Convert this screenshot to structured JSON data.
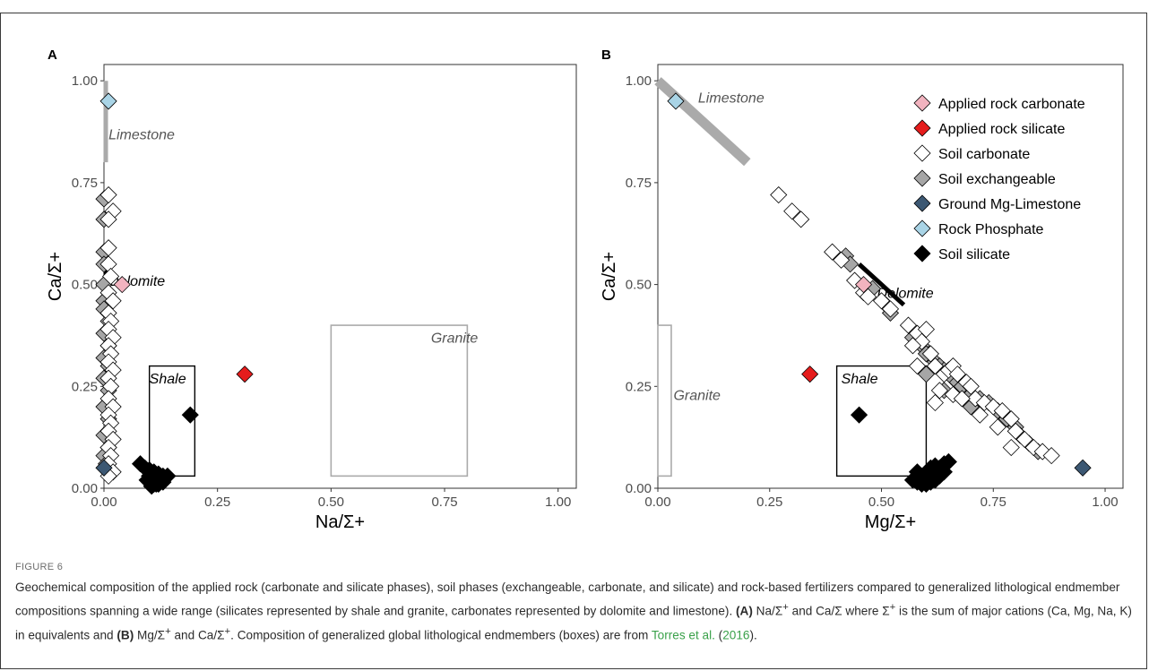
{
  "chart_data": [
    {
      "type": "scatter",
      "panel": "A",
      "xlabel": "Na/Σ+",
      "ylabel": "Ca/Σ+",
      "xlim": [
        0,
        1.04
      ],
      "ylim": [
        0,
        1.04
      ],
      "x_ticks": [
        "0.00",
        "0.25",
        "0.50",
        "0.75",
        "1.00"
      ],
      "y_ticks": [
        "0.00",
        "0.25",
        "0.50",
        "0.75",
        "1.00"
      ],
      "endmembers": [
        {
          "name": "Limestone",
          "kind": "bar",
          "color": "#aaaaaa",
          "x": [
            0,
            0
          ],
          "y": [
            0.8,
            1.0
          ],
          "label_at": [
            0.01,
            0.87
          ]
        },
        {
          "name": "Dolomite",
          "kind": "bar",
          "color": "#000000",
          "x": [
            0,
            0
          ],
          "y": [
            0.45,
            0.55
          ],
          "label_at": [
            0.01,
            0.51
          ]
        },
        {
          "name": "Shale",
          "kind": "box",
          "color": "#000000",
          "x": [
            0.1,
            0.2
          ],
          "y": [
            0.03,
            0.3
          ],
          "label_at": [
            0.1,
            0.27
          ]
        },
        {
          "name": "Granite",
          "kind": "box",
          "color": "#aaaaaa",
          "x": [
            0.5,
            0.8
          ],
          "y": [
            0.03,
            0.4
          ],
          "label_at": [
            0.72,
            0.37
          ]
        }
      ],
      "series": [
        {
          "name": "Soil exchangeable",
          "color": "#a6a6a6",
          "points": [
            [
              0,
              0.71
            ],
            [
              0,
              0.66
            ],
            [
              0,
              0.58
            ],
            [
              0,
              0.55
            ],
            [
              0,
              0.5
            ],
            [
              0,
              0.46
            ],
            [
              0,
              0.44
            ],
            [
              0.01,
              0.41
            ],
            [
              0,
              0.38
            ],
            [
              0.01,
              0.35
            ],
            [
              0,
              0.32
            ],
            [
              0.01,
              0.3
            ],
            [
              0,
              0.27
            ],
            [
              0.01,
              0.24
            ],
            [
              0,
              0.2
            ],
            [
              0.01,
              0.17
            ],
            [
              0,
              0.13
            ],
            [
              0.01,
              0.1
            ],
            [
              0,
              0.08
            ],
            [
              0.005,
              0.06
            ]
          ]
        },
        {
          "name": "Soil carbonate",
          "color": "#ffffff",
          "points": [
            [
              0.01,
              0.72
            ],
            [
              0.02,
              0.68
            ],
            [
              0.01,
              0.66
            ],
            [
              0.01,
              0.59
            ],
            [
              0.01,
              0.55
            ],
            [
              0.015,
              0.52
            ],
            [
              0.01,
              0.48
            ],
            [
              0.02,
              0.46
            ],
            [
              0.01,
              0.43
            ],
            [
              0.015,
              0.41
            ],
            [
              0.01,
              0.39
            ],
            [
              0.02,
              0.37
            ],
            [
              0.01,
              0.35
            ],
            [
              0.015,
              0.33
            ],
            [
              0.01,
              0.31
            ],
            [
              0.02,
              0.29
            ],
            [
              0.01,
              0.27
            ],
            [
              0.015,
              0.25
            ],
            [
              0.01,
              0.22
            ],
            [
              0.02,
              0.2
            ],
            [
              0.01,
              0.18
            ],
            [
              0.015,
              0.16
            ],
            [
              0.01,
              0.14
            ],
            [
              0.02,
              0.12
            ],
            [
              0.01,
              0.1
            ],
            [
              0.015,
              0.08
            ],
            [
              0.01,
              0.06
            ],
            [
              0.02,
              0.04
            ],
            [
              0.01,
              0.03
            ]
          ]
        },
        {
          "name": "Soil silicate",
          "color": "#000000",
          "points": [
            [
              0.19,
              0.18
            ],
            [
              0.08,
              0.06
            ],
            [
              0.09,
              0.05
            ],
            [
              0.1,
              0.045
            ],
            [
              0.11,
              0.04
            ],
            [
              0.12,
              0.035
            ],
            [
              0.13,
              0.03
            ],
            [
              0.14,
              0.03
            ],
            [
              0.1,
              0.03
            ],
            [
              0.11,
              0.025
            ],
            [
              0.12,
              0.02
            ],
            [
              0.13,
              0.02
            ],
            [
              0.1,
              0.015
            ],
            [
              0.11,
              0.01
            ],
            [
              0.12,
              0.01
            ],
            [
              0.13,
              0.015
            ],
            [
              0.095,
              0.02
            ],
            [
              0.105,
              0.005
            ],
            [
              0.115,
              0.01
            ],
            [
              0.125,
              0.03
            ]
          ]
        },
        {
          "name": "Ground Mg-Limestone",
          "color": "#3c5873",
          "points": [
            [
              0.0,
              0.05
            ]
          ]
        },
        {
          "name": "Rock Phosphate",
          "color": "#a9d4e6",
          "points": [
            [
              0.01,
              0.95
            ]
          ]
        },
        {
          "name": "Applied rock carbonate",
          "color": "#f2b3bf",
          "points": [
            [
              0.04,
              0.5
            ]
          ]
        },
        {
          "name": "Applied rock silicate",
          "color": "#e51c1c",
          "points": [
            [
              0.31,
              0.28
            ]
          ]
        }
      ]
    },
    {
      "type": "scatter",
      "panel": "B",
      "xlabel": "Mg/Σ+",
      "ylabel": "Ca/Σ+",
      "xlim": [
        0,
        1.04
      ],
      "ylim": [
        0,
        1.04
      ],
      "x_ticks": [
        "0.00",
        "0.25",
        "0.50",
        "0.75",
        "1.00"
      ],
      "y_ticks": [
        "0.00",
        "0.25",
        "0.50",
        "0.75",
        "1.00"
      ],
      "legend_position": "top-right",
      "endmembers": [
        {
          "name": "Limestone",
          "kind": "diag",
          "color": "#aaaaaa",
          "x": [
            0,
            0.2
          ],
          "y": [
            1.0,
            0.8
          ],
          "label_at": [
            0.09,
            0.96
          ]
        },
        {
          "name": "Dolomite",
          "kind": "diag",
          "color": "#000000",
          "x": [
            0.45,
            0.55
          ],
          "y": [
            0.55,
            0.45
          ],
          "label_at": [
            0.49,
            0.48
          ]
        },
        {
          "name": "Shale",
          "kind": "box",
          "color": "#000000",
          "x": [
            0.4,
            0.6
          ],
          "y": [
            0.03,
            0.3
          ],
          "label_at": [
            0.41,
            0.27
          ]
        },
        {
          "name": "Granite",
          "kind": "box",
          "color": "#aaaaaa",
          "x": [
            0,
            0.03
          ],
          "y": [
            0.03,
            0.4
          ],
          "label_at": [
            0.035,
            0.23
          ]
        }
      ],
      "series": [
        {
          "name": "Soil exchangeable",
          "color": "#a6a6a6",
          "points": [
            [
              0.42,
              0.57
            ],
            [
              0.43,
              0.55
            ],
            [
              0.48,
              0.49
            ],
            [
              0.51,
              0.45
            ],
            [
              0.52,
              0.43
            ],
            [
              0.57,
              0.37
            ],
            [
              0.59,
              0.35
            ],
            [
              0.6,
              0.33
            ],
            [
              0.62,
              0.31
            ],
            [
              0.63,
              0.3
            ],
            [
              0.64,
              0.29
            ],
            [
              0.66,
              0.27
            ],
            [
              0.67,
              0.26
            ],
            [
              0.68,
              0.25
            ],
            [
              0.7,
              0.23
            ],
            [
              0.72,
              0.22
            ],
            [
              0.74,
              0.21
            ],
            [
              0.76,
              0.19
            ],
            [
              0.78,
              0.17
            ],
            [
              0.8,
              0.15
            ],
            [
              0.81,
              0.13
            ],
            [
              0.83,
              0.11
            ],
            [
              0.85,
              0.09
            ],
            [
              0.6,
              0.28
            ],
            [
              0.64,
              0.24
            ],
            [
              0.7,
              0.2
            ]
          ]
        },
        {
          "name": "Soil carbonate",
          "color": "#ffffff",
          "points": [
            [
              0.27,
              0.72
            ],
            [
              0.3,
              0.68
            ],
            [
              0.32,
              0.66
            ],
            [
              0.39,
              0.58
            ],
            [
              0.41,
              0.56
            ],
            [
              0.44,
              0.51
            ],
            [
              0.46,
              0.48
            ],
            [
              0.47,
              0.47
            ],
            [
              0.5,
              0.46
            ],
            [
              0.52,
              0.44
            ],
            [
              0.56,
              0.4
            ],
            [
              0.58,
              0.38
            ],
            [
              0.59,
              0.36
            ],
            [
              0.6,
              0.39
            ],
            [
              0.57,
              0.35
            ],
            [
              0.58,
              0.3
            ],
            [
              0.61,
              0.33
            ],
            [
              0.62,
              0.3
            ],
            [
              0.64,
              0.28
            ],
            [
              0.65,
              0.29
            ],
            [
              0.66,
              0.3
            ],
            [
              0.67,
              0.28
            ],
            [
              0.69,
              0.26
            ],
            [
              0.7,
              0.25
            ],
            [
              0.71,
              0.22
            ],
            [
              0.73,
              0.21
            ],
            [
              0.75,
              0.2
            ],
            [
              0.77,
              0.19
            ],
            [
              0.79,
              0.17
            ],
            [
              0.8,
              0.14
            ],
            [
              0.82,
              0.12
            ],
            [
              0.84,
              0.1
            ],
            [
              0.86,
              0.09
            ],
            [
              0.88,
              0.08
            ],
            [
              0.79,
              0.1
            ],
            [
              0.62,
              0.21
            ],
            [
              0.63,
              0.24
            ],
            [
              0.66,
              0.23
            ],
            [
              0.68,
              0.22
            ],
            [
              0.72,
              0.18
            ],
            [
              0.76,
              0.15
            ]
          ]
        },
        {
          "name": "Soil silicate",
          "color": "#000000",
          "points": [
            [
              0.45,
              0.18
            ],
            [
              0.58,
              0.04
            ],
            [
              0.59,
              0.03
            ],
            [
              0.6,
              0.02
            ],
            [
              0.61,
              0.03
            ],
            [
              0.62,
              0.04
            ],
            [
              0.63,
              0.05
            ],
            [
              0.64,
              0.06
            ],
            [
              0.65,
              0.065
            ],
            [
              0.58,
              0.015
            ],
            [
              0.59,
              0.01
            ],
            [
              0.6,
              0.01
            ],
            [
              0.61,
              0.015
            ],
            [
              0.62,
              0.02
            ],
            [
              0.6,
              0.035
            ],
            [
              0.61,
              0.05
            ],
            [
              0.62,
              0.055
            ],
            [
              0.63,
              0.03
            ],
            [
              0.64,
              0.04
            ],
            [
              0.57,
              0.02
            ]
          ]
        },
        {
          "name": "Ground Mg-Limestone",
          "color": "#3c5873",
          "points": [
            [
              0.95,
              0.05
            ]
          ]
        },
        {
          "name": "Rock Phosphate",
          "color": "#a9d4e6",
          "points": [
            [
              0.04,
              0.95
            ]
          ]
        },
        {
          "name": "Applied rock carbonate",
          "color": "#f2b3bf",
          "points": [
            [
              0.46,
              0.5
            ]
          ]
        },
        {
          "name": "Applied rock silicate",
          "color": "#e51c1c",
          "points": [
            [
              0.34,
              0.28
            ]
          ]
        }
      ],
      "legend": [
        {
          "name": "Applied rock carbonate",
          "color": "#f2b3bf"
        },
        {
          "name": "Applied rock silicate",
          "color": "#e51c1c"
        },
        {
          "name": "Soil carbonate",
          "color": "#ffffff"
        },
        {
          "name": "Soil exchangeable",
          "color": "#a6a6a6"
        },
        {
          "name": "Ground Mg-Limestone",
          "color": "#3c5873"
        },
        {
          "name": "Rock Phosphate",
          "color": "#a9d4e6"
        },
        {
          "name": "Soil silicate",
          "color": "#000000"
        }
      ]
    }
  ],
  "figure": {
    "label": "FIGURE 6",
    "caption_1": "Geochemical composition of the applied rock (carbonate and silicate phases), soil phases (exchangeable, carbonate, and silicate) and rock-based fertilizers compared to generalized lithological endmember compositions spanning a wide range (silicates represented by shale and granite, carbonates represented by dolomite and limestone).",
    "panel_a_tag": "(A)",
    "caption_2": " Na/Σ",
    "caption_2_sup": "+",
    "caption_3": " and Ca/Σ where Σ",
    "caption_3_sup": "+",
    "caption_4": " is the sum of major cations (Ca, Mg, Na, K) in equivalents and ",
    "panel_b_tag": "(B)",
    "caption_5": " Mg/Σ",
    "caption_5_sup": "+",
    "caption_6": " and Ca/Σ",
    "caption_6_sup": "+",
    "caption_7": ". Composition of generalized global lithological endmembers (boxes) are from ",
    "ref_author": "Torres et al.",
    "ref_open": " (",
    "ref_year": "2016",
    "ref_close": ")."
  }
}
